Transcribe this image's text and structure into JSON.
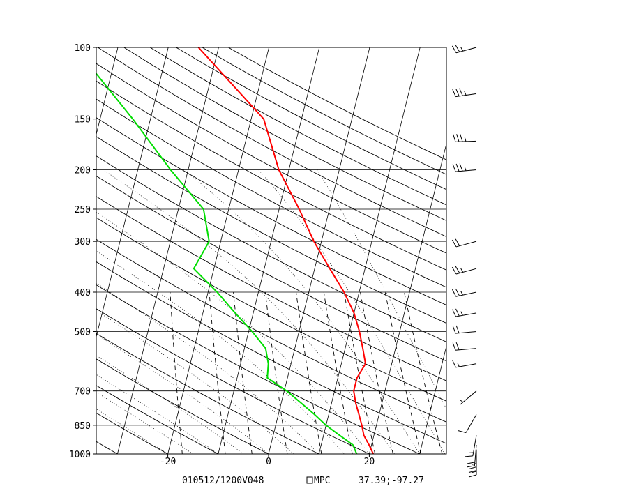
{
  "chart_data": {
    "type": "line",
    "title": "",
    "xlabel": "",
    "ylabel": "",
    "x_axis": {
      "range": [
        -34,
        35
      ],
      "ticks": [
        -20,
        0,
        20
      ]
    },
    "y_axis": {
      "scale": "log",
      "reversed": true,
      "range": [
        1000,
        100
      ],
      "ticks": [
        100,
        150,
        200,
        250,
        300,
        400,
        500,
        700,
        850,
        1000
      ]
    },
    "grid": true,
    "series": [
      {
        "color": "#ff0000",
        "points": [
          {
            "p": 1000,
            "t": 20.8
          },
          {
            "p": 950,
            "t": 19.5
          },
          {
            "p": 900,
            "t": 18.0
          },
          {
            "p": 850,
            "t": 17.1
          },
          {
            "p": 800,
            "t": 16.0
          },
          {
            "p": 750,
            "t": 14.8
          },
          {
            "p": 700,
            "t": 13.8
          },
          {
            "p": 650,
            "t": 13.8
          },
          {
            "p": 600,
            "t": 14.8
          },
          {
            "p": 550,
            "t": 13.5
          },
          {
            "p": 500,
            "t": 12.0
          },
          {
            "p": 450,
            "t": 10.0
          },
          {
            "p": 400,
            "t": 7.0
          },
          {
            "p": 350,
            "t": 3.0
          },
          {
            "p": 300,
            "t": -1.5
          },
          {
            "p": 250,
            "t": -6.0
          },
          {
            "p": 200,
            "t": -12.0
          },
          {
            "p": 150,
            "t": -17.5
          },
          {
            "p": 100,
            "t": -34.0
          }
        ]
      },
      {
        "color": "#00dd00",
        "points": [
          {
            "p": 1000,
            "t": 17.5
          },
          {
            "p": 950,
            "t": 16.3
          },
          {
            "p": 900,
            "t": 13.2
          },
          {
            "p": 850,
            "t": 10.0
          },
          {
            "p": 800,
            "t": 7.2
          },
          {
            "p": 750,
            "t": 4.0
          },
          {
            "p": 700,
            "t": 0.5
          },
          {
            "p": 650,
            "t": -4.0
          },
          {
            "p": 600,
            "t": -4.5
          },
          {
            "p": 550,
            "t": -5.8
          },
          {
            "p": 500,
            "t": -9.3
          },
          {
            "p": 450,
            "t": -13.6
          },
          {
            "p": 400,
            "t": -18.2
          },
          {
            "p": 350,
            "t": -24.0
          },
          {
            "p": 300,
            "t": -22.3
          },
          {
            "p": 250,
            "t": -25.0
          },
          {
            "p": 200,
            "t": -33.5
          },
          {
            "p": 150,
            "t": -43.5
          },
          {
            "p": 100,
            "t": -58.5
          }
        ]
      }
    ],
    "wind_barbs": [
      {
        "p": 1000,
        "speed": 15,
        "dir": 180
      },
      {
        "p": 975,
        "speed": 25,
        "dir": 180
      },
      {
        "p": 950,
        "speed": 20,
        "dir": 185
      },
      {
        "p": 900,
        "speed": 15,
        "dir": 190
      },
      {
        "p": 800,
        "speed": 10,
        "dir": 210
      },
      {
        "p": 700,
        "speed": 5,
        "dir": 230
      },
      {
        "p": 600,
        "speed": 15,
        "dir": 260
      },
      {
        "p": 550,
        "speed": 20,
        "dir": 265
      },
      {
        "p": 500,
        "speed": 20,
        "dir": 265
      },
      {
        "p": 450,
        "speed": 25,
        "dir": 260
      },
      {
        "p": 400,
        "speed": 25,
        "dir": 258
      },
      {
        "p": 350,
        "speed": 25,
        "dir": 255
      },
      {
        "p": 300,
        "speed": 20,
        "dir": 255
      },
      {
        "p": 200,
        "speed": 35,
        "dir": 265
      },
      {
        "p": 170,
        "speed": 35,
        "dir": 268
      },
      {
        "p": 130,
        "speed": 35,
        "dir": 262
      },
      {
        "p": 100,
        "speed": 25,
        "dir": 255
      }
    ]
  },
  "footer": {
    "valid_time": "010512/1200V048",
    "source": "MPC",
    "location": "37.39;-97.27"
  },
  "colors": {
    "temperature": "#ff0000",
    "dewpoint": "#00dd00",
    "axes": "#000000"
  }
}
